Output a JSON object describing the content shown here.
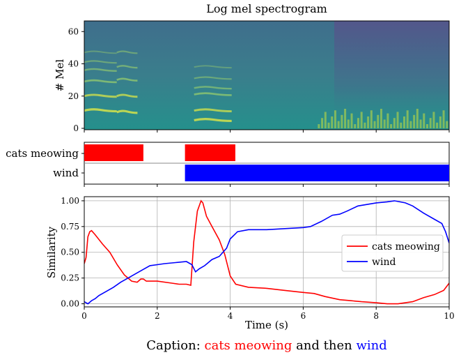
{
  "chart_data": [
    {
      "type": "heatmap",
      "title": "Log mel spectrogram",
      "ylabel": "# Mel",
      "xlim": [
        0,
        10
      ],
      "ylim": [
        0,
        64
      ],
      "yticks": [
        0,
        20,
        40,
        60
      ],
      "colormap": "viridis"
    },
    {
      "type": "bar",
      "orientation": "horizontal",
      "categories": [
        "cats meowing",
        "wind"
      ],
      "series": [
        {
          "name": "cats meowing",
          "color": "#ff0000",
          "segments": [
            [
              0,
              1.62
            ],
            [
              2.76,
              4.14
            ]
          ]
        },
        {
          "name": "wind",
          "color": "#0000ff",
          "segments": [
            [
              2.76,
              10
            ]
          ]
        }
      ],
      "xlim": [
        0,
        10
      ]
    },
    {
      "type": "line",
      "xlabel": "Time (s)",
      "ylabel": "Similarity",
      "xlim": [
        0,
        10
      ],
      "ylim": [
        -0.03,
        1.04
      ],
      "xticks": [
        0,
        2,
        4,
        6,
        8,
        10
      ],
      "yticks": [
        "0.00",
        "0.25",
        "0.50",
        "0.75",
        "1.00"
      ],
      "grid": true,
      "legend": "center-right",
      "series": [
        {
          "name": "cats meowing",
          "color": "#ff0000",
          "x": [
            0,
            0.05,
            0.1,
            0.15,
            0.2,
            0.3,
            0.5,
            0.7,
            0.9,
            1.1,
            1.3,
            1.45,
            1.55,
            1.62,
            1.7,
            2.0,
            2.4,
            2.6,
            2.8,
            2.92,
            3.0,
            3.1,
            3.2,
            3.25,
            3.35,
            3.5,
            3.7,
            3.85,
            4.0,
            4.15,
            4.5,
            5.0,
            5.5,
            6.0,
            6.3,
            6.6,
            7.0,
            7.3,
            7.6,
            8.0,
            8.3,
            8.6,
            9.0,
            9.3,
            9.6,
            9.85,
            10.0
          ],
          "y": [
            0.39,
            0.45,
            0.65,
            0.7,
            0.71,
            0.67,
            0.58,
            0.5,
            0.38,
            0.28,
            0.22,
            0.21,
            0.24,
            0.24,
            0.22,
            0.22,
            0.2,
            0.19,
            0.19,
            0.18,
            0.6,
            0.9,
            1.0,
            0.98,
            0.85,
            0.75,
            0.62,
            0.48,
            0.27,
            0.19,
            0.16,
            0.15,
            0.13,
            0.11,
            0.1,
            0.07,
            0.04,
            0.03,
            0.02,
            0.01,
            0.0,
            0.0,
            0.02,
            0.06,
            0.09,
            0.13,
            0.2
          ]
        },
        {
          "name": "wind",
          "color": "#0000ff",
          "x": [
            0,
            0.1,
            0.2,
            0.3,
            0.4,
            0.6,
            0.8,
            1.0,
            1.2,
            1.4,
            1.6,
            1.8,
            2.0,
            2.2,
            2.5,
            2.8,
            2.95,
            3.05,
            3.15,
            3.3,
            3.5,
            3.7,
            3.9,
            4.0,
            4.2,
            4.5,
            5.0,
            5.5,
            6.0,
            6.2,
            6.5,
            6.8,
            7.0,
            7.2,
            7.5,
            8.0,
            8.3,
            8.5,
            8.8,
            9.0,
            9.3,
            9.6,
            9.8,
            9.9,
            10.0
          ],
          "y": [
            0.02,
            0.0,
            0.03,
            0.05,
            0.08,
            0.12,
            0.16,
            0.21,
            0.25,
            0.29,
            0.33,
            0.37,
            0.38,
            0.39,
            0.4,
            0.41,
            0.38,
            0.31,
            0.34,
            0.37,
            0.43,
            0.46,
            0.54,
            0.63,
            0.7,
            0.72,
            0.72,
            0.73,
            0.74,
            0.75,
            0.8,
            0.86,
            0.87,
            0.9,
            0.95,
            0.98,
            0.99,
            1.0,
            0.98,
            0.95,
            0.88,
            0.82,
            0.78,
            0.7,
            0.59
          ]
        }
      ]
    }
  ],
  "caption": {
    "prefix": "Caption: ",
    "part1": "cats meowing",
    "middle": " and then ",
    "part2": "wind",
    "color1": "#ff0000",
    "color2": "#0000ff"
  }
}
